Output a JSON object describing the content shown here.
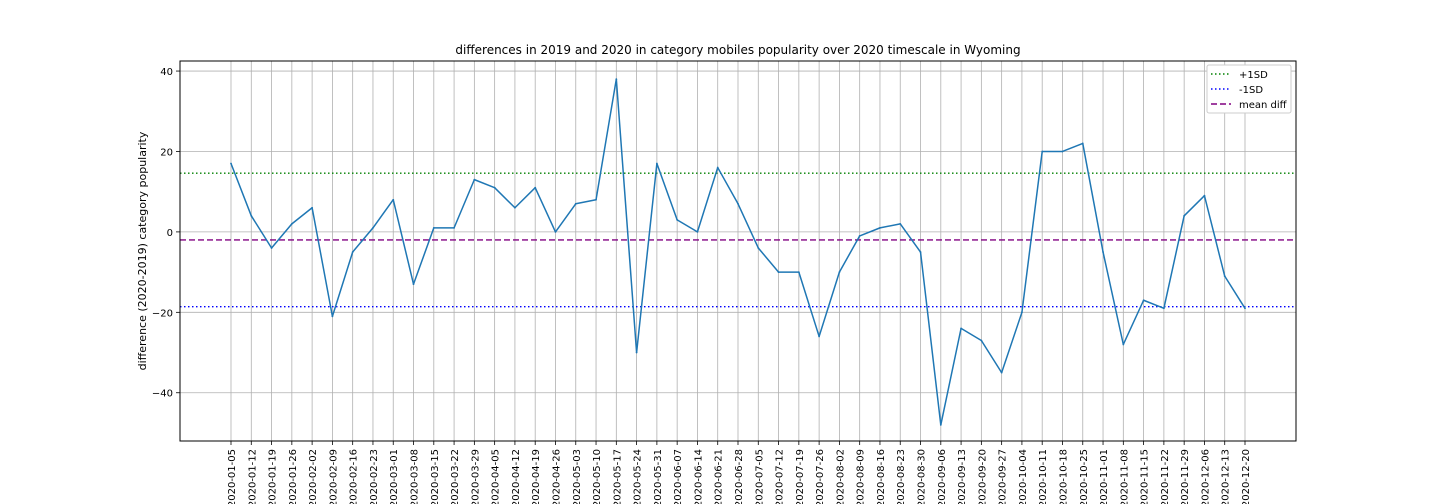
{
  "chart_data": {
    "type": "line",
    "title": "differences in 2019 and 2020 in category mobiles popularity over 2020 timescale in Wyoming",
    "xlabel": "",
    "ylabel": "difference (2020-2019) category popularity",
    "ylim": [
      -52,
      42.5
    ],
    "yticks": [
      40,
      20,
      0,
      -20,
      -40
    ],
    "ytick_labels": [
      "40",
      "20",
      "0",
      "−20",
      "−40"
    ],
    "grid": true,
    "legend_position": "top-right",
    "x": [
      "2020-01-05",
      "2020-01-12",
      "2020-01-19",
      "2020-01-26",
      "2020-02-02",
      "2020-02-09",
      "2020-02-16",
      "2020-02-23",
      "2020-03-01",
      "2020-03-08",
      "2020-03-15",
      "2020-03-22",
      "2020-03-29",
      "2020-04-05",
      "2020-04-12",
      "2020-04-19",
      "2020-04-26",
      "2020-05-03",
      "2020-05-10",
      "2020-05-17",
      "2020-05-24",
      "2020-05-31",
      "2020-06-07",
      "2020-06-14",
      "2020-06-21",
      "2020-06-28",
      "2020-07-05",
      "2020-07-12",
      "2020-07-19",
      "2020-07-26",
      "2020-08-02",
      "2020-08-09",
      "2020-08-16",
      "2020-08-23",
      "2020-08-30",
      "2020-09-06",
      "2020-09-13",
      "2020-09-20",
      "2020-09-27",
      "2020-10-04",
      "2020-10-11",
      "2020-10-18",
      "2020-10-25",
      "2020-11-01",
      "2020-11-08",
      "2020-11-15",
      "2020-11-22",
      "2020-11-29",
      "2020-12-06",
      "2020-12-13",
      "2020-12-20"
    ],
    "series": [
      {
        "values": [
          17,
          4,
          -4,
          2,
          6,
          -21,
          -5,
          1,
          8,
          -13,
          1,
          1,
          13,
          11,
          6,
          11,
          0,
          7,
          8,
          38,
          -30,
          17,
          3,
          0,
          16,
          7,
          -4,
          -10,
          -10,
          -26,
          -10,
          -1,
          1,
          2,
          -5,
          -48,
          -24,
          -27,
          -35,
          -20,
          20,
          20,
          22,
          -5,
          -28,
          -17,
          -19,
          4,
          9,
          -11,
          -19
        ],
        "color": "#1f77b4"
      }
    ],
    "reference_lines": [
      {
        "name": "+1SD",
        "value": 14.6,
        "color": "#008000",
        "style": "dotted"
      },
      {
        "name": "-1SD",
        "value": -18.6,
        "color": "#0000ff",
        "style": "dotted"
      },
      {
        "name": "mean diff",
        "value": -2.0,
        "color": "#800080",
        "style": "dashed"
      }
    ]
  }
}
